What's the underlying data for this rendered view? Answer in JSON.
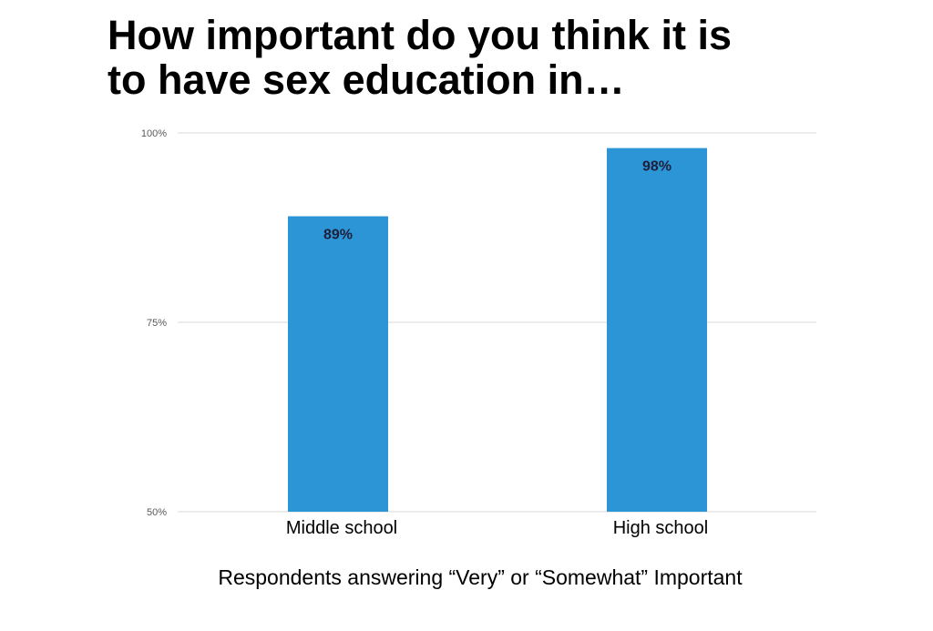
{
  "title_lines": [
    "How important do you think it is",
    "to have sex education in…"
  ],
  "subtitle": "Respondents answering “Very” or “Somewhat” Important",
  "colors": {
    "bar": "#2b95d6",
    "grid": "#d9d9d9",
    "tick_text": "#595959",
    "label_text": "#1f1f3a"
  },
  "chart_data": {
    "type": "bar",
    "title": "How important do you think it is to have sex education in…",
    "categories": [
      "Middle school",
      "High school"
    ],
    "values": [
      89,
      98
    ],
    "value_labels": [
      "89%",
      "98%"
    ],
    "yticks": [
      50,
      75,
      100
    ],
    "ytick_labels": [
      "50%",
      "75%",
      "100%"
    ],
    "ylim": [
      50,
      100
    ],
    "xlabel": "Respondents answering “Very” or “Somewhat” Important",
    "ylabel": "",
    "grid": true,
    "legend": "none"
  }
}
